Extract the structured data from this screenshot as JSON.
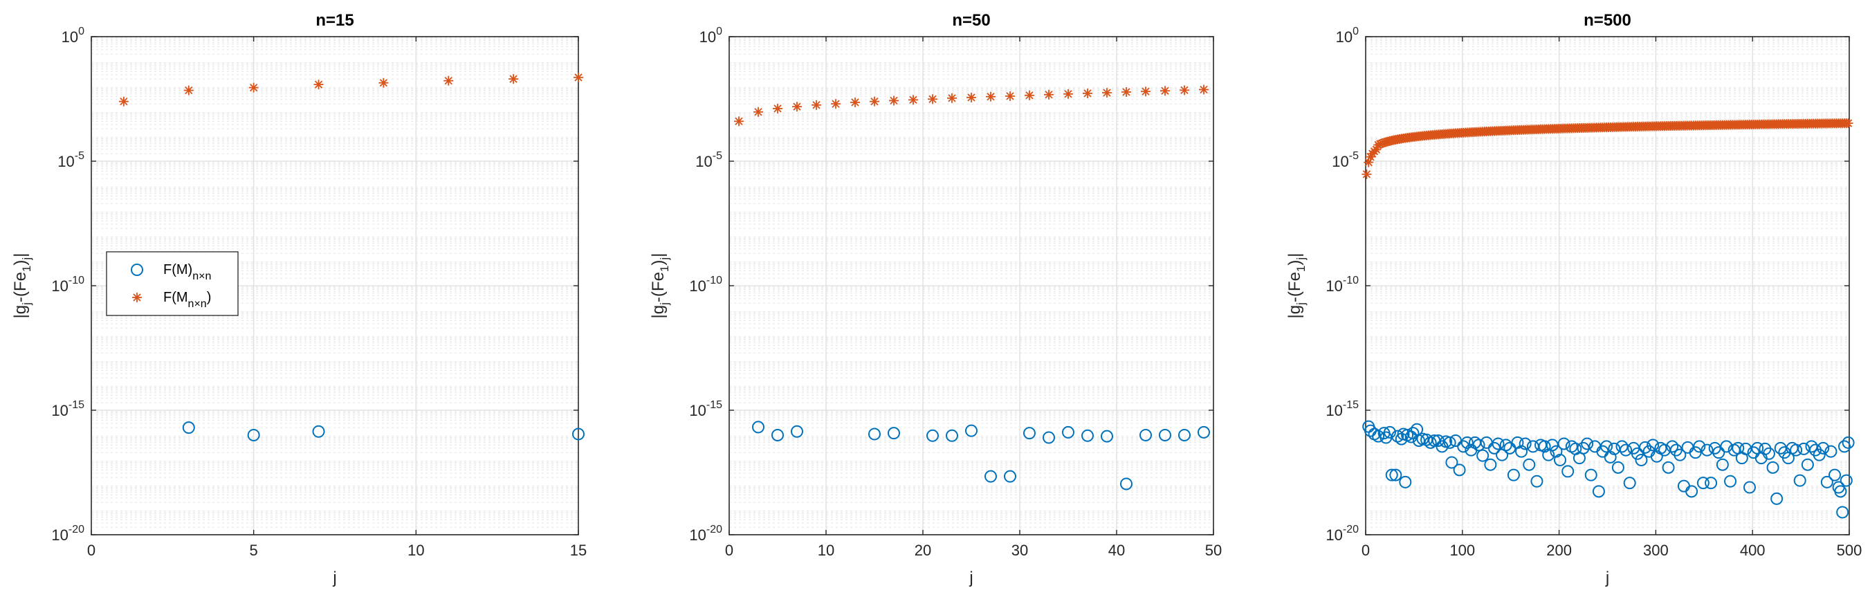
{
  "colors": {
    "circle_series": "#0072bd",
    "star_series": "#d95319",
    "axis": "#262626"
  },
  "chart_data": [
    {
      "type": "scatter",
      "title": "n=15",
      "xlabel": "j",
      "ylabel": "|g_j-(Fe_1)_j|",
      "xlim": [
        0,
        15
      ],
      "xticks": [
        0,
        5,
        10,
        15
      ],
      "ylim": [
        1e-20,
        1
      ],
      "yscale": "log",
      "yticks": [
        1e-20,
        1e-15,
        1e-10,
        1e-05,
        1
      ],
      "ytick_exponents": [
        "-20",
        "-15",
        "-10",
        "-5",
        "0"
      ],
      "grid": true,
      "legend": {
        "placement": "middle-left",
        "entries": [
          {
            "marker": "circle",
            "text": "F(M)",
            "subscript": "n×n",
            "suffix": ""
          },
          {
            "marker": "star",
            "text": "F(M",
            "subscript": "n×n",
            "suffix": ")"
          }
        ]
      },
      "series": [
        {
          "marker": "circle",
          "points": [
            [
              3,
              2e-16
            ],
            [
              5,
              1e-16
            ],
            [
              7,
              1.4e-16
            ],
            [
              15,
              1.1e-16
            ]
          ]
        },
        {
          "marker": "star",
          "points": [
            [
              1,
              0.0025
            ],
            [
              3,
              0.007
            ],
            [
              5,
              0.009
            ],
            [
              7,
              0.012
            ],
            [
              9,
              0.014
            ],
            [
              11,
              0.017
            ],
            [
              13,
              0.02
            ],
            [
              15,
              0.023
            ]
          ]
        }
      ]
    },
    {
      "type": "scatter",
      "title": "n=50",
      "xlabel": "j",
      "ylabel": "|g_j-(Fe_1)_j|",
      "xlim": [
        0,
        50
      ],
      "xticks": [
        0,
        10,
        20,
        30,
        40,
        50
      ],
      "ylim": [
        1e-20,
        1
      ],
      "yscale": "log",
      "yticks": [
        1e-20,
        1e-15,
        1e-10,
        1e-05,
        1
      ],
      "ytick_exponents": [
        "-20",
        "-15",
        "-10",
        "-5",
        "0"
      ],
      "grid": true,
      "series": [
        {
          "marker": "circle",
          "points": [
            [
              3,
              2.1e-16
            ],
            [
              5,
              1e-16
            ],
            [
              7,
              1.4e-16
            ],
            [
              15,
              1.1e-16
            ],
            [
              17,
              1.2e-16
            ],
            [
              21,
              9.5e-17
            ],
            [
              23,
              9.5e-17
            ],
            [
              25,
              1.5e-16
            ],
            [
              27,
              2.2e-18
            ],
            [
              29,
              2.2e-18
            ],
            [
              31,
              1.2e-16
            ],
            [
              33,
              8e-17
            ],
            [
              35,
              1.3e-16
            ],
            [
              37,
              9.5e-17
            ],
            [
              39,
              9e-17
            ],
            [
              41,
              1.1e-18
            ],
            [
              43,
              1e-16
            ],
            [
              45,
              1e-16
            ],
            [
              47,
              1e-16
            ],
            [
              49,
              1.3e-16
            ]
          ]
        },
        {
          "marker": "star",
          "points": [
            [
              1,
              0.0004
            ],
            [
              3,
              0.00095
            ],
            [
              5,
              0.0013
            ],
            [
              7,
              0.00155
            ],
            [
              9,
              0.0018
            ],
            [
              11,
              0.002
            ],
            [
              13,
              0.0023
            ],
            [
              15,
              0.0025
            ],
            [
              17,
              0.0027
            ],
            [
              19,
              0.0029
            ],
            [
              21,
              0.0031
            ],
            [
              23,
              0.0034
            ],
            [
              25,
              0.0036
            ],
            [
              27,
              0.0039
            ],
            [
              29,
              0.0041
            ],
            [
              31,
              0.0044
            ],
            [
              33,
              0.0047
            ],
            [
              35,
              0.005
            ],
            [
              37,
              0.0053
            ],
            [
              39,
              0.0056
            ],
            [
              41,
              0.006
            ],
            [
              43,
              0.0063
            ],
            [
              45,
              0.0067
            ],
            [
              47,
              0.0071
            ],
            [
              49,
              0.0075
            ]
          ]
        }
      ]
    },
    {
      "type": "scatter",
      "title": "n=500",
      "xlabel": "j",
      "ylabel": "|g_j-(Fe_1)_j|",
      "xlim": [
        0,
        500
      ],
      "xticks": [
        0,
        100,
        200,
        300,
        400,
        500
      ],
      "ylim": [
        1e-20,
        1
      ],
      "yscale": "log",
      "yticks": [
        1e-20,
        1e-15,
        1e-10,
        1e-05,
        1
      ],
      "ytick_exponents": [
        "-20",
        "-15",
        "-10",
        "-5",
        "0"
      ],
      "grid": true,
      "series": [
        {
          "marker": "circle",
          "points": [
            [
              3,
              2.2e-16
            ],
            [
              5,
              1.5e-16
            ],
            [
              9,
              1.1e-16
            ],
            [
              13,
              9e-17
            ],
            [
              19,
              1.2e-16
            ],
            [
              21,
              8e-17
            ],
            [
              25,
              1.3e-16
            ],
            [
              27,
              2.5e-18
            ],
            [
              31,
              2.5e-18
            ],
            [
              33,
              9e-17
            ],
            [
              37,
              7e-17
            ],
            [
              39,
              1.1e-16
            ],
            [
              41,
              1.3e-18
            ],
            [
              43,
              1e-16
            ],
            [
              47,
              8.5e-17
            ],
            [
              49,
              1.2e-16
            ],
            [
              53,
              1.7e-16
            ],
            [
              55,
              6e-17
            ],
            [
              59,
              7e-17
            ],
            [
              63,
              6.5e-17
            ],
            [
              67,
              5e-17
            ],
            [
              71,
              6e-17
            ],
            [
              75,
              6e-17
            ],
            [
              79,
              3.5e-17
            ],
            [
              83,
              5.5e-17
            ],
            [
              87,
              5e-17
            ],
            [
              89,
              8e-18
            ],
            [
              93,
              6e-17
            ],
            [
              97,
              4e-18
            ],
            [
              101,
              3.5e-17
            ],
            [
              105,
              5e-17
            ],
            [
              109,
              2.5e-17
            ],
            [
              113,
              5e-17
            ],
            [
              117,
              4e-17
            ],
            [
              121,
              1.5e-17
            ],
            [
              125,
              5e-17
            ],
            [
              129,
              6.5e-18
            ],
            [
              133,
              3e-17
            ],
            [
              137,
              4.5e-17
            ],
            [
              141,
              1.6e-17
            ],
            [
              145,
              4e-17
            ],
            [
              149,
              3e-17
            ],
            [
              153,
              2.5e-18
            ],
            [
              157,
              5e-17
            ],
            [
              161,
              2.2e-17
            ],
            [
              165,
              4.5e-17
            ],
            [
              169,
              6.5e-18
            ],
            [
              173,
              3.5e-17
            ],
            [
              177,
              1.4e-18
            ],
            [
              181,
              4e-17
            ],
            [
              185,
              3.5e-17
            ],
            [
              189,
              1.6e-17
            ],
            [
              193,
              4e-17
            ],
            [
              197,
              2.2e-17
            ],
            [
              201,
              1e-17
            ],
            [
              205,
              4.5e-17
            ],
            [
              209,
              3.5e-18
            ],
            [
              213,
              3.5e-17
            ],
            [
              217,
              2.8e-17
            ],
            [
              221,
              1.2e-17
            ],
            [
              225,
              3e-17
            ],
            [
              229,
              4.5e-17
            ],
            [
              233,
              2.5e-18
            ],
            [
              237,
              3.5e-17
            ],
            [
              241,
              5.5e-19
            ],
            [
              245,
              2.2e-17
            ],
            [
              249,
              3.5e-17
            ],
            [
              253,
              1.3e-17
            ],
            [
              257,
              2.8e-17
            ],
            [
              261,
              5e-18
            ],
            [
              265,
              3.5e-17
            ],
            [
              269,
              2.5e-17
            ],
            [
              273,
              1.2e-18
            ],
            [
              277,
              3e-17
            ],
            [
              281,
              1.8e-17
            ],
            [
              285,
              1e-17
            ],
            [
              289,
              3.2e-17
            ],
            [
              293,
              2.2e-17
            ],
            [
              297,
              4e-17
            ],
            [
              301,
              1.4e-17
            ],
            [
              305,
              3e-17
            ],
            [
              309,
              2.5e-17
            ],
            [
              313,
              5e-18
            ],
            [
              317,
              3.5e-17
            ],
            [
              321,
              2.5e-17
            ],
            [
              325,
              1.6e-17
            ],
            [
              329,
              9e-19
            ],
            [
              333,
              3.2e-17
            ],
            [
              337,
              5.5e-19
            ],
            [
              341,
              2e-17
            ],
            [
              345,
              3.5e-17
            ],
            [
              349,
              1.2e-18
            ],
            [
              353,
              2.5e-17
            ],
            [
              357,
              1.2e-18
            ],
            [
              361,
              3e-17
            ],
            [
              365,
              2e-17
            ],
            [
              369,
              6.5e-18
            ],
            [
              373,
              3.5e-17
            ],
            [
              377,
              1.4e-18
            ],
            [
              381,
              2.5e-17
            ],
            [
              385,
              3e-17
            ],
            [
              389,
              1.2e-17
            ],
            [
              393,
              2.8e-17
            ],
            [
              397,
              8e-19
            ],
            [
              401,
              2e-17
            ],
            [
              405,
              3e-17
            ],
            [
              409,
              1.2e-17
            ],
            [
              413,
              2.8e-17
            ],
            [
              417,
              1.8e-17
            ],
            [
              421,
              5e-18
            ],
            [
              425,
              2.8e-19
            ],
            [
              429,
              3e-17
            ],
            [
              433,
              2e-17
            ],
            [
              437,
              1.2e-17
            ],
            [
              441,
              3e-17
            ],
            [
              445,
              2.5e-17
            ],
            [
              449,
              1.5e-18
            ],
            [
              453,
              2.8e-17
            ],
            [
              457,
              6.5e-18
            ],
            [
              461,
              3.5e-17
            ],
            [
              465,
              2.5e-17
            ],
            [
              469,
              1.6e-17
            ],
            [
              473,
              3e-17
            ],
            [
              477,
              1.3e-18
            ],
            [
              481,
              2.2e-17
            ],
            [
              485,
              2.5e-18
            ],
            [
              489,
              8e-19
            ],
            [
              491,
              5.5e-19
            ],
            [
              493,
              8e-20
            ],
            [
              495,
              3.5e-17
            ],
            [
              497,
              1.5e-18
            ],
            [
              499,
              5e-17
            ]
          ]
        },
        {
          "marker": "star",
          "samples": {
            "start": 1,
            "end": 499,
            "step": 2,
            "amplitude": 1.1e-05,
            "exponent": 0.55
          },
          "points": [
            [
              1,
              3e-06
            ],
            [
              3,
              9e-06
            ],
            [
              5,
              1.5e-05
            ],
            [
              7,
              2e-05
            ],
            [
              9,
              2.5e-05
            ],
            [
              11,
              2.9e-05
            ]
          ]
        }
      ]
    }
  ]
}
